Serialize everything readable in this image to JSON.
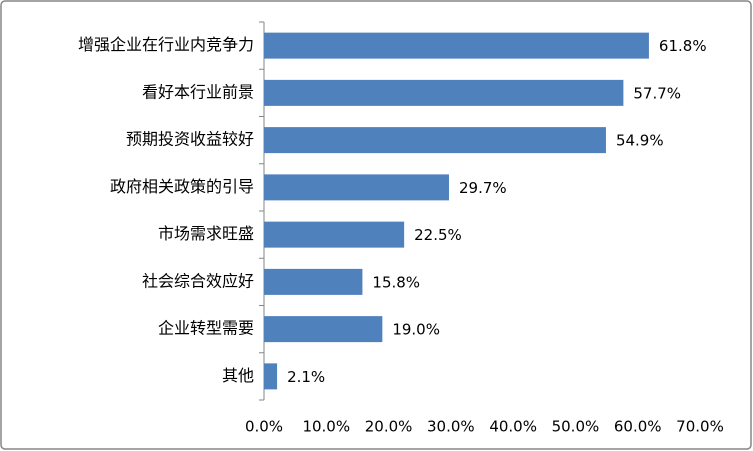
{
  "chart_data": {
    "type": "hbar",
    "categories": [
      "增强企业在行业内竞争力",
      "看好本行业前景",
      "预期投资收益较好",
      "政府相关政策的引导",
      "市场需求旺盛",
      "社会综合效应好",
      "企业转型需要",
      "其他"
    ],
    "values": [
      61.8,
      57.7,
      54.9,
      29.7,
      22.5,
      15.8,
      19.0,
      2.1
    ],
    "value_labels": [
      "61.8%",
      "57.7%",
      "54.9%",
      "29.7%",
      "22.5%",
      "15.8%",
      "19.0%",
      "2.1%"
    ],
    "color": "#4f81bd",
    "xlim": [
      0,
      70
    ],
    "xticks": [
      {
        "value": 0,
        "label": "0.0%"
      },
      {
        "value": 10,
        "label": "10.0%"
      },
      {
        "value": 20,
        "label": "20.0%"
      },
      {
        "value": 30,
        "label": "30.0%"
      },
      {
        "value": 40,
        "label": "40.0%"
      },
      {
        "value": 50,
        "label": "50.0%"
      },
      {
        "value": 60,
        "label": "60.0%"
      },
      {
        "value": 70,
        "label": "70.0%"
      }
    ],
    "grid": false
  }
}
